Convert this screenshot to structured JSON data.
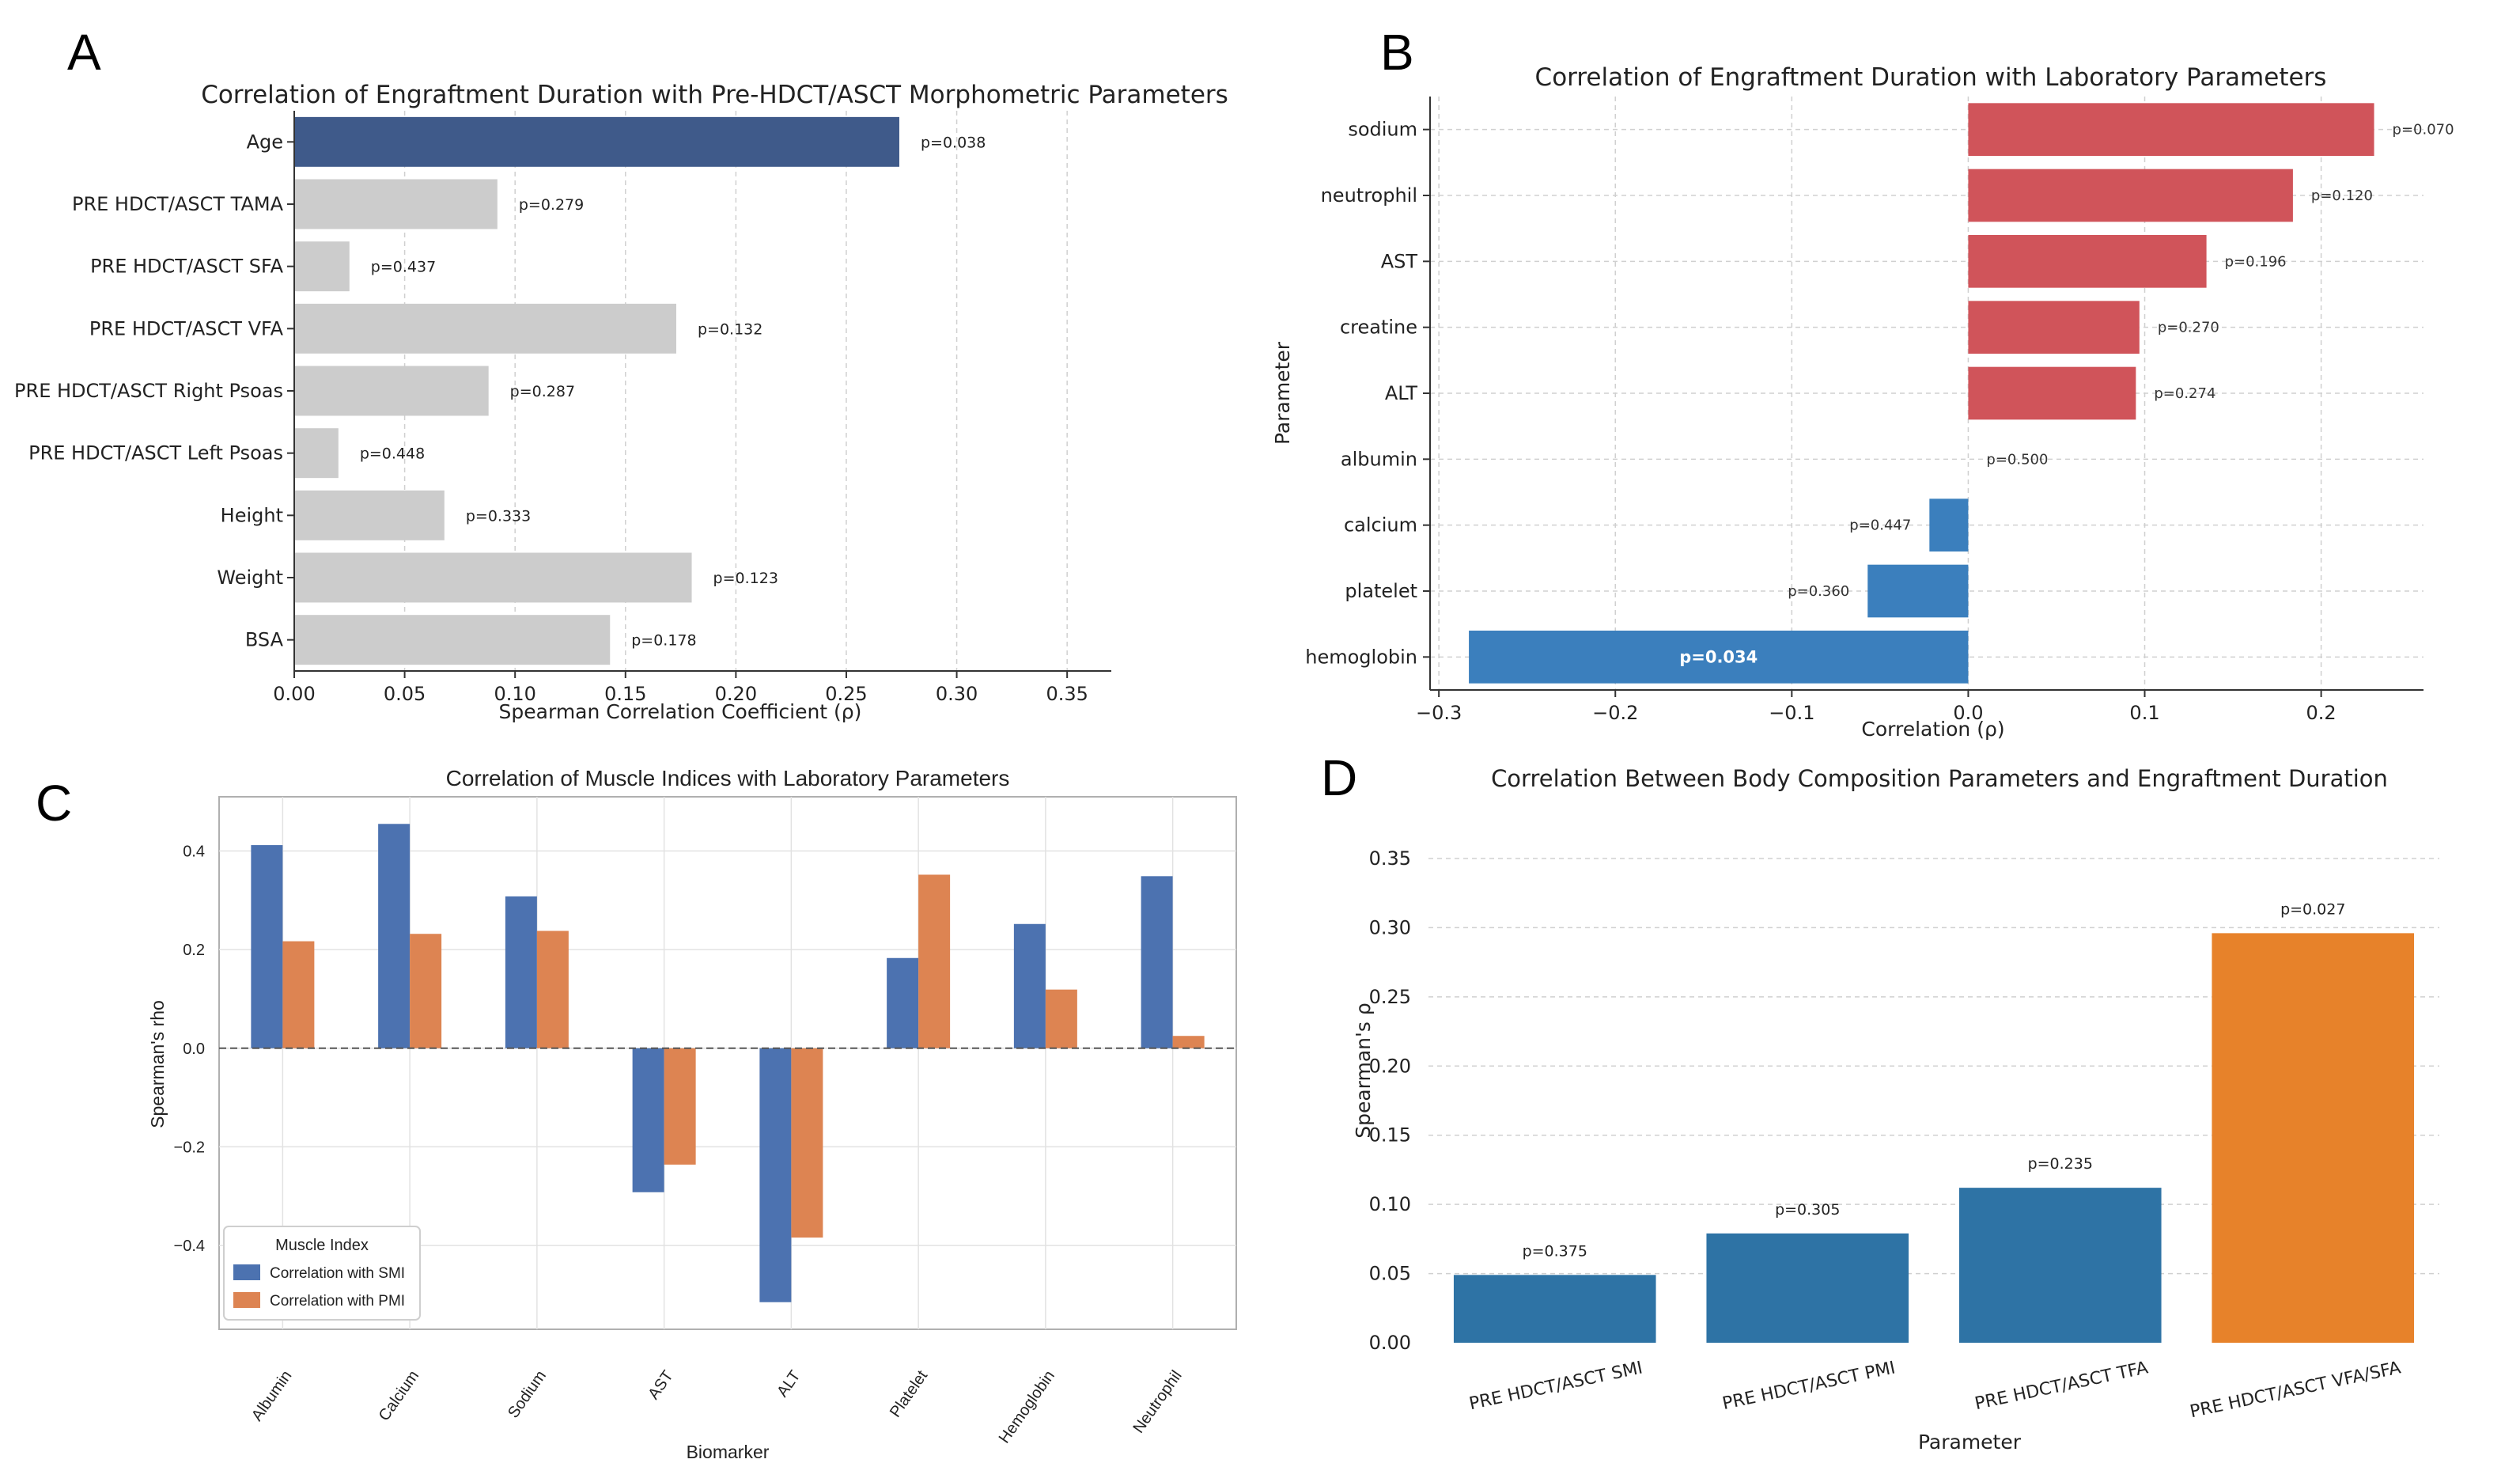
{
  "panels": {
    "A": "A",
    "B": "B",
    "C": "C",
    "D": "D"
  },
  "chart_data": [
    {
      "id": "A",
      "type": "bar",
      "orientation": "horizontal",
      "title": "Correlation of Engraftment Duration with Pre-HDCT/ASCT Morphometric Parameters",
      "xlabel": "Spearman Correlation Coefficient (ρ)",
      "ylabel": "",
      "xlim": [
        0,
        0.37
      ],
      "xticks": [
        "0.00",
        "0.05",
        "0.10",
        "0.15",
        "0.20",
        "0.25",
        "0.30",
        "0.35"
      ],
      "xtick_values": [
        0,
        0.05,
        0.1,
        0.15,
        0.2,
        0.25,
        0.3,
        0.35
      ],
      "categories": [
        "Age",
        "PRE HDCT/ASCT TAMA",
        "PRE HDCT/ASCT SFA",
        "PRE HDCT/ASCT VFA",
        "PRE HDCT/ASCT Right Psoas",
        "PRE HDCT/ASCT Left Psoas",
        "Height",
        "Weight",
        "BSA"
      ],
      "values": [
        0.274,
        0.092,
        0.025,
        0.173,
        0.088,
        0.02,
        0.068,
        0.18,
        0.143
      ],
      "pvalues": [
        "p=0.038",
        "p=0.279",
        "p=0.437",
        "p=0.132",
        "p=0.287",
        "p=0.448",
        "p=0.333",
        "p=0.123",
        "p=0.178"
      ],
      "colors": {
        "significant": "#3f5a8a",
        "nonsignificant": "#cccccc"
      },
      "highlight_index": 0
    },
    {
      "id": "B",
      "type": "bar",
      "orientation": "horizontal",
      "title": "Correlation of Engraftment Duration with Laboratory Parameters",
      "xlabel": "Correlation (ρ)",
      "ylabel": "Parameter",
      "xlim": [
        -0.305,
        0.258
      ],
      "xticks": [
        "−0.3",
        "−0.2",
        "−0.1",
        "0.0",
        "0.1",
        "0.2"
      ],
      "xtick_values": [
        -0.3,
        -0.2,
        -0.1,
        0,
        0.1,
        0.2
      ],
      "categories": [
        "sodium",
        "neutrophil",
        "AST",
        "creatine",
        "ALT",
        "albumin",
        "calcium",
        "platelet",
        "hemoglobin"
      ],
      "values": [
        0.23,
        0.184,
        0.135,
        0.097,
        0.095,
        0.0,
        -0.022,
        -0.057,
        -0.283
      ],
      "pvalues": [
        "p=0.070",
        "p=0.120",
        "p=0.196",
        "p=0.270",
        "p=0.274",
        "p=0.500",
        "p=0.447",
        "p=0.360",
        "p=0.034"
      ],
      "colors": {
        "positive": "#d0545a",
        "negative": "#3b7fbd"
      },
      "bold_label_index": 8
    },
    {
      "id": "C",
      "type": "bar",
      "orientation": "vertical",
      "title": "Correlation of Muscle Indices with Laboratory Parameters",
      "xlabel": "Biomarker",
      "ylabel": "Spearman's rho",
      "ylim": [
        -0.57,
        0.51
      ],
      "yticks": [
        "0.4",
        "0.2",
        "0.0",
        "−0.2",
        "−0.4"
      ],
      "ytick_values": [
        0.4,
        0.2,
        0,
        -0.2,
        -0.4
      ],
      "categories": [
        "Albumin",
        "Calcium",
        "Sodium",
        "AST",
        "ALT",
        "Platelet",
        "Hemoglobin",
        "Neutrophil"
      ],
      "series": [
        {
          "name": "Correlation with SMI",
          "color": "#4c72b0",
          "values": [
            0.412,
            0.455,
            0.308,
            -0.292,
            -0.515,
            0.183,
            0.252,
            0.349
          ]
        },
        {
          "name": "Correlation with PMI",
          "color": "#dd8452",
          "values": [
            0.217,
            0.232,
            0.238,
            -0.236,
            -0.384,
            0.352,
            0.119,
            0.025
          ]
        }
      ],
      "legend": {
        "title": "Muscle Index",
        "placement": "lower-left"
      }
    },
    {
      "id": "D",
      "type": "bar",
      "orientation": "vertical",
      "title": "Correlation Between Body Composition Parameters and Engraftment Duration",
      "xlabel": "Parameter",
      "ylabel": "Spearman's ρ",
      "ylim": [
        0,
        0.39
      ],
      "yticks": [
        "0.00",
        "0.05",
        "0.10",
        "0.15",
        "0.20",
        "0.25",
        "0.30",
        "0.35"
      ],
      "ytick_values": [
        0,
        0.05,
        0.1,
        0.15,
        0.2,
        0.25,
        0.3,
        0.35
      ],
      "categories": [
        "PRE HDCT/ASCT SMI",
        "PRE HDCT/ASCT PMI",
        "PRE HDCT/ASCT TFA",
        "PRE HDCT/ASCT VFA/SFA"
      ],
      "values": [
        0.049,
        0.079,
        0.112,
        0.296
      ],
      "pvalues": [
        "p=0.375",
        "p=0.305",
        "p=0.235",
        "p=0.027"
      ],
      "colors": {
        "default": "#2e73a5",
        "highlight": "#e7822a"
      },
      "highlight_index": 3
    }
  ]
}
